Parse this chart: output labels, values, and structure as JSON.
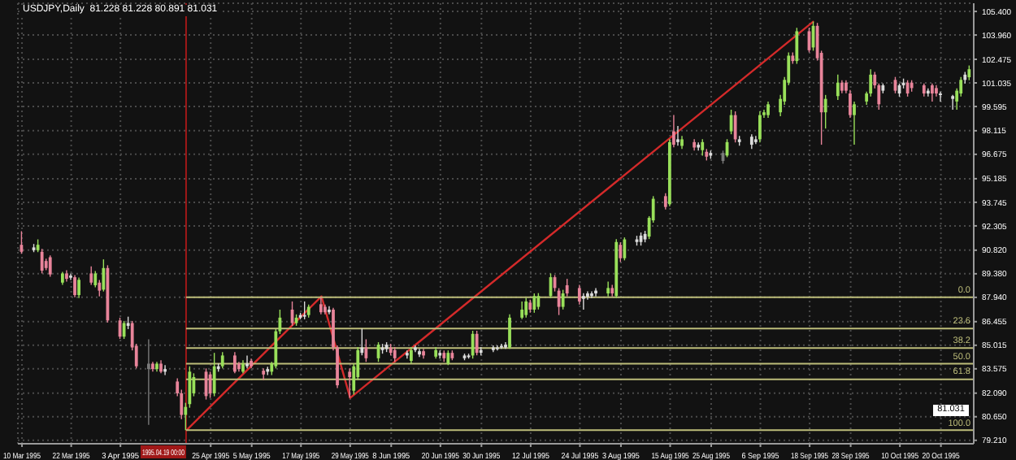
{
  "chart_data": {
    "type": "candlestick",
    "title": "USDJPY,Daily  81.228 81.228 80.891 81.031",
    "x": [
      "1995-03-10",
      "1995-03-13",
      "1995-03-14",
      "1995-03-15",
      "1995-03-16",
      "1995-03-17",
      "1995-03-20",
      "1995-03-21",
      "1995-03-22",
      "1995-03-23",
      "1995-03-24",
      "1995-03-27",
      "1995-03-28",
      "1995-03-29",
      "1995-03-30",
      "1995-03-31",
      "1995-04-03",
      "1995-04-04",
      "1995-04-05",
      "1995-04-06",
      "1995-04-07",
      "1995-04-10",
      "1995-04-11",
      "1995-04-12",
      "1995-04-13",
      "1995-04-14",
      "1995-04-17",
      "1995-04-18",
      "1995-04-19",
      "1995-04-20",
      "1995-04-21",
      "1995-04-24",
      "1995-04-25",
      "1995-04-26",
      "1995-04-27",
      "1995-04-28",
      "1995-05-01",
      "1995-05-02",
      "1995-05-03",
      "1995-05-04",
      "1995-05-05",
      "1995-05-08",
      "1995-05-09",
      "1995-05-10",
      "1995-05-11",
      "1995-05-12",
      "1995-05-15",
      "1995-05-16",
      "1995-05-17",
      "1995-05-18",
      "1995-05-19",
      "1995-05-22",
      "1995-05-23",
      "1995-05-24",
      "1995-05-25",
      "1995-05-26",
      "1995-05-29",
      "1995-05-30",
      "1995-05-31",
      "1995-06-01",
      "1995-06-02",
      "1995-06-05",
      "1995-06-06",
      "1995-06-07",
      "1995-06-08",
      "1995-06-09",
      "1995-06-12",
      "1995-06-13",
      "1995-06-14",
      "1995-06-15",
      "1995-06-16",
      "1995-06-19",
      "1995-06-20",
      "1995-06-21",
      "1995-06-22",
      "1995-06-23",
      "1995-06-26",
      "1995-06-27",
      "1995-06-28",
      "1995-06-29",
      "1995-06-30",
      "1995-07-03",
      "1995-07-04",
      "1995-07-05",
      "1995-07-06",
      "1995-07-07",
      "1995-07-10",
      "1995-07-11",
      "1995-07-12",
      "1995-07-13",
      "1995-07-14",
      "1995-07-17",
      "1995-07-18",
      "1995-07-19",
      "1995-07-20",
      "1995-07-21",
      "1995-07-24",
      "1995-07-25",
      "1995-07-26",
      "1995-07-27",
      "1995-07-28",
      "1995-07-31",
      "1995-08-01",
      "1995-08-02",
      "1995-08-03",
      "1995-08-04",
      "1995-08-07",
      "1995-08-08",
      "1995-08-09",
      "1995-08-10",
      "1995-08-11",
      "1995-08-14",
      "1995-08-15",
      "1995-08-16",
      "1995-08-17",
      "1995-08-18",
      "1995-08-21",
      "1995-08-22",
      "1995-08-23",
      "1995-08-24",
      "1995-08-25",
      "1995-08-28",
      "1995-08-29",
      "1995-08-30",
      "1995-08-31",
      "1995-09-01",
      "1995-09-04",
      "1995-09-05",
      "1995-09-06",
      "1995-09-07",
      "1995-09-08",
      "1995-09-11",
      "1995-09-12",
      "1995-09-13",
      "1995-09-14",
      "1995-09-15",
      "1995-09-18",
      "1995-09-19",
      "1995-09-20",
      "1995-09-21",
      "1995-09-22",
      "1995-09-25",
      "1995-09-26",
      "1995-09-27",
      "1995-09-28",
      "1995-09-29",
      "1995-10-02",
      "1995-10-03",
      "1995-10-04",
      "1995-10-05",
      "1995-10-06",
      "1995-10-09",
      "1995-10-10",
      "1995-10-11",
      "1995-10-12",
      "1995-10-13",
      "1995-10-16",
      "1995-10-17",
      "1995-10-18",
      "1995-10-19",
      "1995-10-20",
      "1995-10-23",
      "1995-10-24",
      "1995-10-25",
      "1995-10-26",
      "1995-10-27"
    ],
    "series": [
      {
        "type": "line",
        "color": "#d42a2a",
        "x": [
          "1995-04-19",
          "1995-05-22",
          "1995-05-29",
          "1995-09-19"
        ],
        "values": [
          79.8,
          88.0,
          81.8,
          104.8
        ]
      },
      {
        "ohlc": [
          [
            91.15,
            91.98,
            90.6,
            90.72
          ],
          [
            90.99,
            91.2,
            90.7,
            90.82
          ],
          [
            90.82,
            91.48,
            90.7,
            91.15
          ],
          [
            90.72,
            90.9,
            89.4,
            89.57
          ],
          [
            90.16,
            90.3,
            89.6,
            89.73
          ],
          [
            90.39,
            90.5,
            89.2,
            89.34
          ],
          [
            88.84,
            89.5,
            88.7,
            89.4
          ],
          [
            89.4,
            89.6,
            88.9,
            89.07
          ],
          [
            89.27,
            89.4,
            89.0,
            89.14
          ],
          [
            89.17,
            89.3,
            87.95,
            88.08
          ],
          [
            88.08,
            89.15,
            87.9,
            89.01
          ],
          [
            89.4,
            89.83,
            88.7,
            88.84
          ],
          [
            88.68,
            89.55,
            88.55,
            89.4
          ],
          [
            88.84,
            89.0,
            88.0,
            88.35
          ],
          [
            88.41,
            90.26,
            88.3,
            89.73
          ],
          [
            89.73,
            89.9,
            86.4,
            86.53
          ],
          [
            86.53,
            86.7,
            85.4,
            85.54
          ],
          [
            85.54,
            86.5,
            85.4,
            86.37
          ],
          [
            86.37,
            86.76,
            86.0,
            86.2
          ],
          [
            86.37,
            86.5,
            84.7,
            84.88
          ],
          [
            84.98,
            85.1,
            83.6,
            83.73
          ],
          [
            83.89,
            85.38,
            80.16,
            83.56
          ],
          [
            83.89,
            84.0,
            83.4,
            83.56
          ],
          [
            83.56,
            84.0,
            83.4,
            83.89
          ],
          [
            83.89,
            84.1,
            83.3,
            83.4
          ],
          [
            83.56,
            83.8,
            83.2,
            83.4
          ],
          [
            82.8,
            83.0,
            81.9,
            82.08
          ],
          [
            82.08,
            82.3,
            80.5,
            80.76
          ],
          [
            80.76,
            81.5,
            79.83,
            81.25
          ],
          [
            81.42,
            83.73,
            81.2,
            83.4
          ],
          [
            82.08,
            83.3,
            81.9,
            83.07
          ],
          [
            83.4,
            83.6,
            81.7,
            81.91
          ],
          [
            83.23,
            83.4,
            81.8,
            82.08
          ],
          [
            82.08,
            84.55,
            81.9,
            83.73
          ],
          [
            83.73,
            83.9,
            83.4,
            83.56
          ],
          [
            83.73,
            84.6,
            83.6,
            84.39
          ],
          [
            84.39,
            84.6,
            83.3,
            83.4
          ],
          [
            83.89,
            84.0,
            83.4,
            83.56
          ],
          [
            83.4,
            84.1,
            83.3,
            83.89
          ],
          [
            83.89,
            84.39,
            83.6,
            83.73
          ],
          [
            84.06,
            84.2,
            83.6,
            83.73
          ],
          [
            83.46,
            83.6,
            82.9,
            83.23
          ],
          [
            83.4,
            83.7,
            83.2,
            83.56
          ],
          [
            83.4,
            84.0,
            83.2,
            83.89
          ],
          [
            83.73,
            86.0,
            83.6,
            85.87
          ],
          [
            85.87,
            87.19,
            85.7,
            86.7
          ],
          [
            87.19,
            87.69,
            86.2,
            86.37
          ],
          [
            86.37,
            86.9,
            86.2,
            86.7
          ],
          [
            86.7,
            87.0,
            86.6,
            86.86
          ],
          [
            86.86,
            87.69,
            86.6,
            86.76
          ],
          [
            86.86,
            87.5,
            86.7,
            87.36
          ],
          [
            87.52,
            87.95,
            86.9,
            87.03
          ],
          [
            87.36,
            87.5,
            86.9,
            87.03
          ],
          [
            87.19,
            87.4,
            86.9,
            87.03
          ],
          [
            87.19,
            87.3,
            84.7,
            84.88
          ],
          [
            84.88,
            85.0,
            82.4,
            82.57
          ],
          [
            83.4,
            83.6,
            81.81,
            83.07
          ],
          [
            82.24,
            83.9,
            82.0,
            83.73
          ],
          [
            83.07,
            84.9,
            82.9,
            84.72
          ],
          [
            84.88,
            86.04,
            84.4,
            84.55
          ],
          [
            84.88,
            85.38,
            84.0,
            84.22
          ],
          [
            84.22,
            85.2,
            84.0,
            85.05
          ],
          [
            84.88,
            85.1,
            84.5,
            84.72
          ],
          [
            84.78,
            85.2,
            84.6,
            85.05
          ],
          [
            84.88,
            85.1,
            84.4,
            84.55
          ],
          [
            84.72,
            84.9,
            84.0,
            84.22
          ],
          [
            84.55,
            84.7,
            84.2,
            84.39
          ],
          [
            84.06,
            84.9,
            83.9,
            84.72
          ],
          [
            84.72,
            85.0,
            84.6,
            84.88
          ],
          [
            84.65,
            84.8,
            84.3,
            84.45
          ],
          [
            84.65,
            84.8,
            84.2,
            84.39
          ],
          [
            84.32,
            84.9,
            84.2,
            84.72
          ],
          [
            84.55,
            84.7,
            84.2,
            84.39
          ],
          [
            84.55,
            84.7,
            84.0,
            84.22
          ],
          [
            83.89,
            84.7,
            83.8,
            84.55
          ],
          [
            84.55,
            84.7,
            84.1,
            84.22
          ],
          [
            84.39,
            84.5,
            84.1,
            84.22
          ],
          [
            84.29,
            84.5,
            84.2,
            84.39
          ],
          [
            84.39,
            85.9,
            84.2,
            85.71
          ],
          [
            85.71,
            85.9,
            84.4,
            84.55
          ],
          [
            84.72,
            84.9,
            84.4,
            84.55
          ],
          [
            84.72,
            85.0,
            84.6,
            84.88
          ],
          [
            84.88,
            85.0,
            84.7,
            84.78
          ],
          [
            84.88,
            85.1,
            84.8,
            84.98
          ],
          [
            84.88,
            85.2,
            84.8,
            85.05
          ],
          [
            84.88,
            86.9,
            84.8,
            86.7
          ],
          [
            86.7,
            87.69,
            86.6,
            87.19
          ],
          [
            86.86,
            87.9,
            86.7,
            87.69
          ],
          [
            87.62,
            87.8,
            87.0,
            87.19
          ],
          [
            87.19,
            88.18,
            87.0,
            88.02
          ],
          [
            87.36,
            88.2,
            87.2,
            88.02
          ],
          [
            88.02,
            89.4,
            87.9,
            89.17
          ],
          [
            89.17,
            89.3,
            88.3,
            88.51
          ],
          [
            88.35,
            88.5,
            86.86,
            87.36
          ],
          [
            87.36,
            88.4,
            87.2,
            88.18
          ],
          [
            88.68,
            89.07,
            88.0,
            88.18
          ],
          [
            88.51,
            88.7,
            87.5,
            87.69
          ],
          [
            88.02,
            88.2,
            87.19,
            87.85
          ],
          [
            87.98,
            88.3,
            87.8,
            88.18
          ],
          [
            88.18,
            88.3,
            87.9,
            88.02
          ],
          [
            88.18,
            88.5,
            88.0,
            88.35
          ],
          [
            88.18,
            88.9,
            88.0,
            88.51
          ],
          [
            88.51,
            88.7,
            88.0,
            88.18
          ],
          [
            88.02,
            91.5,
            87.9,
            91.32
          ],
          [
            91.15,
            91.3,
            90.1,
            90.33
          ],
          [
            90.33,
            91.6,
            90.2,
            91.48
          ],
          [
            91.48,
            91.7,
            91.1,
            91.32
          ],
          [
            91.32,
            91.9,
            91.1,
            91.71
          ],
          [
            91.48,
            92.0,
            91.3,
            91.81
          ],
          [
            91.65,
            92.9,
            91.5,
            92.8
          ],
          [
            92.64,
            94.12,
            92.5,
            93.96
          ],
          [
            94.12,
            94.3,
            93.3,
            93.46
          ],
          [
            93.63,
            97.6,
            93.5,
            97.42
          ],
          [
            98.08,
            99.07,
            97.1,
            97.26
          ],
          [
            97.59,
            98.41,
            97.2,
            97.42
          ],
          [
            97.19,
            97.8,
            97.0,
            97.59
          ],
          [
            97.42,
            97.6,
            96.9,
            97.09
          ],
          [
            97.26,
            97.4,
            96.9,
            97.09
          ],
          [
            96.93,
            97.6,
            96.6,
            97.42
          ],
          [
            96.83,
            97.0,
            96.3,
            96.53
          ],
          [
            96.76,
            96.9,
            96.4,
            96.6
          ],
          [
            96.76,
            96.9,
            96.1,
            96.27
          ],
          [
            96.6,
            97.6,
            96.5,
            97.42
          ],
          [
            98.08,
            99.4,
            97.9,
            99.07
          ],
          [
            99.07,
            99.3,
            97.4,
            97.59
          ],
          [
            97.59,
            97.8,
            97.2,
            97.42
          ],
          [
            97.26,
            97.9,
            97.0,
            97.75
          ],
          [
            97.59,
            97.8,
            97.3,
            97.42
          ],
          [
            97.59,
            99.3,
            97.4,
            99.07
          ],
          [
            99.07,
            99.4,
            98.9,
            99.24
          ],
          [
            99.07,
            99.9,
            98.9,
            99.73
          ],
          [
            99.24,
            100.3,
            99.0,
            100.06
          ],
          [
            99.9,
            101.4,
            99.7,
            101.22
          ],
          [
            101.05,
            102.9,
            100.9,
            102.7
          ],
          [
            102.7,
            102.9,
            102.2,
            102.37
          ],
          [
            102.37,
            104.4,
            102.2,
            104.19
          ],
          [
            104.19,
            104.4,
            102.9,
            103.03
          ],
          [
            103.2,
            104.78,
            103.0,
            104.52
          ],
          [
            104.52,
            104.7,
            102.4,
            102.54
          ],
          [
            102.87,
            103.0,
            97.26,
            99.24
          ],
          [
            99.24,
            100.3,
            98.25,
            100.06
          ],
          [
            100.23,
            101.54,
            100.0,
            101.05
          ],
          [
            101.05,
            101.2,
            100.4,
            100.56
          ],
          [
            101.05,
            101.2,
            100.4,
            100.56
          ],
          [
            100.39,
            100.6,
            98.9,
            99.07
          ],
          [
            99.07,
            99.9,
            97.26,
            99.73
          ],
          [
            99.9,
            100.5,
            99.7,
            100.39
          ],
          [
            100.39,
            101.87,
            100.2,
            101.54
          ],
          [
            101.54,
            101.7,
            100.7,
            100.89
          ],
          [
            100.89,
            101.0,
            99.4,
            99.73
          ],
          [
            100.56,
            101.0,
            100.4,
            100.89
          ],
          [
            101.22,
            101.4,
            100.4,
            100.56
          ],
          [
            100.39,
            101.0,
            100.2,
            100.89
          ],
          [
            100.89,
            101.3,
            100.7,
            101.05
          ],
          [
            101.05,
            101.2,
            100.2,
            100.39
          ],
          [
            101.05,
            101.2,
            100.5,
            100.72
          ],
          [
            100.89,
            101.0,
            100.2,
            100.39
          ],
          [
            100.56,
            100.7,
            100.2,
            100.39
          ],
          [
            100.89,
            101.0,
            99.9,
            100.39
          ],
          [
            100.72,
            100.9,
            100.2,
            100.39
          ],
          [
            100.39,
            100.5,
            99.9,
            100.29
          ],
          [
            100.23,
            100.3,
            99.4,
            100.06
          ],
          [
            99.9,
            100.7,
            99.4,
            100.56
          ],
          [
            100.39,
            101.4,
            100.2,
            101.22
          ],
          [
            101.22,
            101.7,
            101.0,
            101.54
          ],
          [
            101.38,
            102.1,
            101.2,
            101.87
          ]
        ],
        "colors": [
          "#e8849a",
          "#dcdcdc",
          "#99e05a",
          "#e8849a",
          "#e8849a",
          "#e8849a",
          "#99e05a",
          "#e8849a",
          "#dcdcdc",
          "#e8849a",
          "#99e05a",
          "#e8849a",
          "#99e05a",
          "#e8849a",
          "#99e05a",
          "#e8849a",
          "#e8849a",
          "#99e05a",
          "#dcdcdc",
          "#e8849a",
          "#e8849a",
          "#7a7a7a",
          "#e8849a",
          "#99e05a",
          "#e8849a",
          "#dcdcdc",
          "#e8849a",
          "#e8849a",
          "#99e05a",
          "#99e05a",
          "#99e05a",
          "#e8849a",
          "#e8849a",
          "#99e05a",
          "#dcdcdc",
          "#99e05a",
          "#e8849a",
          "#e8849a",
          "#99e05a",
          "#dcdcdc",
          "#e8849a",
          "#e8849a",
          "#dcdcdc",
          "#99e05a",
          "#99e05a",
          "#99e05a",
          "#e8849a",
          "#99e05a",
          "#dcdcdc",
          "#dcdcdc",
          "#99e05a",
          "#e8849a",
          "#e8849a",
          "#dcdcdc",
          "#e8849a",
          "#e8849a",
          "#e8849a",
          "#99e05a",
          "#99e05a",
          "#dcdcdc",
          "#e8849a",
          "#99e05a",
          "#dcdcdc",
          "#dcdcdc",
          "#e8849a",
          "#e8849a",
          "#dcdcdc",
          "#99e05a",
          "#dcdcdc",
          "#dcdcdc",
          "#e8849a",
          "#99e05a",
          "#dcdcdc",
          "#e8849a",
          "#99e05a",
          "#e8849a",
          "#dcdcdc",
          "#dcdcdc",
          "#99e05a",
          "#e8849a",
          "#dcdcdc",
          "#dcdcdc",
          "#dcdcdc",
          "#dcdcdc",
          "#dcdcdc",
          "#99e05a",
          "#99e05a",
          "#99e05a",
          "#e8849a",
          "#99e05a",
          "#99e05a",
          "#99e05a",
          "#e8849a",
          "#e8849a",
          "#99e05a",
          "#e8849a",
          "#e8849a",
          "#dcdcdc",
          "#dcdcdc",
          "#dcdcdc",
          "#dcdcdc",
          "#99e05a",
          "#e8849a",
          "#99e05a",
          "#e8849a",
          "#99e05a",
          "#dcdcdc",
          "#dcdcdc",
          "#dcdcdc",
          "#99e05a",
          "#99e05a",
          "#e8849a",
          "#99e05a",
          "#e8849a",
          "#dcdcdc",
          "#99e05a",
          "#e8849a",
          "#dcdcdc",
          "#99e05a",
          "#e8849a",
          "#dcdcdc",
          "#7a7a7a",
          "#99e05a",
          "#99e05a",
          "#e8849a",
          "#dcdcdc",
          "#dcdcdc",
          "#dcdcdc",
          "#99e05a",
          "#99e05a",
          "#99e05a",
          "#99e05a",
          "#99e05a",
          "#99e05a",
          "#e8849a",
          "#99e05a",
          "#e8849a",
          "#99e05a",
          "#e8849a",
          "#e8849a",
          "#99e05a",
          "#99e05a",
          "#e8849a",
          "#e8849a",
          "#e8849a",
          "#99e05a",
          "#99e05a",
          "#99e05a",
          "#e8849a",
          "#e8849a",
          "#dcdcdc",
          "#e8849a",
          "#dcdcdc",
          "#dcdcdc",
          "#e8849a",
          "#e8849a",
          "#e8849a",
          "#dcdcdc",
          "#e8849a",
          "#e8849a",
          "#dcdcdc",
          "#dcdcdc",
          "#99e05a",
          "#99e05a",
          "#dcdcdc",
          "#99e05a"
        ]
      }
    ],
    "xlim": [
      "1995-03-09",
      "1995-10-28"
    ],
    "xticks": [
      {
        "value": "1995-03-10",
        "label": "10 Mar 1995"
      },
      {
        "value": "1995-03-22",
        "label": "22 Mar 1995"
      },
      {
        "value": "1995-04-03",
        "label": "3 Apr 1995"
      },
      {
        "value": "1995-04-25",
        "label": "25 Apr 1995"
      },
      {
        "value": "1995-05-05",
        "label": "5 May 1995"
      },
      {
        "value": "1995-05-17",
        "label": "17 May 1995"
      },
      {
        "value": "1995-05-29",
        "label": "29 May 1995"
      },
      {
        "value": "1995-06-08",
        "label": "8 Jun 1995"
      },
      {
        "value": "1995-06-20",
        "label": "20 Jun 1995"
      },
      {
        "value": "1995-06-30",
        "label": "30 Jun 1995"
      },
      {
        "value": "1995-07-12",
        "label": "12 Jul 1995"
      },
      {
        "value": "1995-07-24",
        "label": "24 Jul 1995"
      },
      {
        "value": "1995-08-03",
        "label": "3 Aug 1995"
      },
      {
        "value": "1995-08-15",
        "label": "15 Aug 1995"
      },
      {
        "value": "1995-08-25",
        "label": "25 Aug 1995"
      },
      {
        "value": "1995-09-06",
        "label": "6 Sep 1995"
      },
      {
        "value": "1995-09-18",
        "label": "18 Sep 1995"
      },
      {
        "value": "1995-09-28",
        "label": "28 Sep 1995"
      },
      {
        "value": "1995-10-10",
        "label": "10 Oct 1995"
      },
      {
        "value": "1995-10-20",
        "label": "20 Oct 1995"
      }
    ],
    "ylim": [
      79.0,
      105.9
    ],
    "yticks": [
      {
        "value": 79.21,
        "label": "79.210"
      },
      {
        "value": 80.65,
        "label": "80.650"
      },
      {
        "value": 82.09,
        "label": "82.090"
      },
      {
        "value": 83.575,
        "label": "83.575"
      },
      {
        "value": 85.015,
        "label": "85.015"
      },
      {
        "value": 86.455,
        "label": "86.455"
      },
      {
        "value": 87.94,
        "label": "87.940"
      },
      {
        "value": 89.38,
        "label": "89.380"
      },
      {
        "value": 90.82,
        "label": "90.820"
      },
      {
        "value": 92.305,
        "label": "92.305"
      },
      {
        "value": 93.745,
        "label": "93.745"
      },
      {
        "value": 95.185,
        "label": "95.185"
      },
      {
        "value": 96.675,
        "label": "96.675"
      },
      {
        "value": 98.115,
        "label": "98.115"
      },
      {
        "value": 99.595,
        "label": "99.595"
      },
      {
        "value": 101.035,
        "label": "101.035"
      },
      {
        "value": 102.475,
        "label": "102.475"
      },
      {
        "value": 103.96,
        "label": "103.960"
      },
      {
        "value": 105.4,
        "label": "105.400"
      }
    ],
    "ref_lines": [
      {
        "axis": "x",
        "value": "1995-04-19",
        "label": "1995.04.19 00:00",
        "color": "#a01818"
      },
      {
        "axis": "y",
        "value": 87.95,
        "color": "#bdbd7a"
      },
      {
        "axis": "y",
        "value": 86.03,
        "color": "#bdbd7a"
      },
      {
        "axis": "y",
        "value": 84.85,
        "color": "#bdbd7a"
      },
      {
        "axis": "y",
        "value": 83.89,
        "color": "#bdbd7a"
      },
      {
        "axis": "y",
        "value": 82.93,
        "color": "#bdbd7a"
      },
      {
        "axis": "y",
        "value": 79.83,
        "color": "#bdbd7a"
      }
    ],
    "annotations": [
      "0.0",
      "23.6",
      "38.2",
      "50.0",
      "61.8",
      "100.0",
      {
        "text": "81.031",
        "y": 81.031
      }
    ],
    "grid": true
  }
}
